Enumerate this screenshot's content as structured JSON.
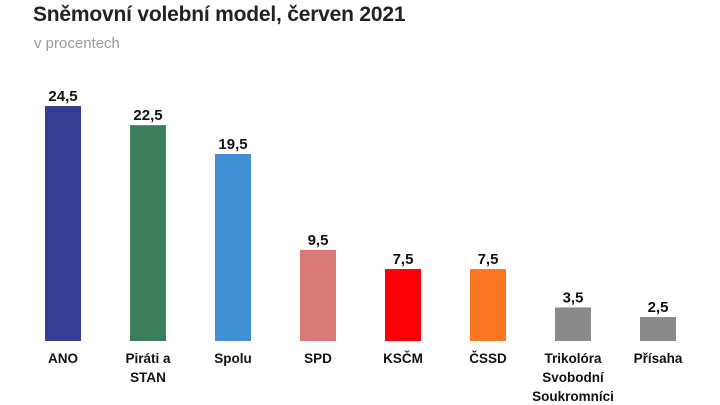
{
  "chart_data": {
    "type": "bar",
    "title": "Sněmovní volební model, červen 2021",
    "subtitle": "v procentech",
    "xlabel": "",
    "ylabel": "",
    "ylim": [
      0,
      24.5
    ],
    "grid": false,
    "categories": [
      [
        "ANO"
      ],
      [
        "Piráti a",
        "STAN"
      ],
      [
        "Spolu"
      ],
      [
        "SPD"
      ],
      [
        "KSČM"
      ],
      [
        "ČSSD"
      ],
      [
        "Trikolóra",
        "Svobodní",
        "Soukromníci"
      ],
      [
        "Přísaha"
      ]
    ],
    "values": [
      24.5,
      22.5,
      19.5,
      9.5,
      7.5,
      7.5,
      3.5,
      2.5
    ],
    "value_labels": [
      "24,5",
      "22,5",
      "19,5",
      "9,5",
      "7,5",
      "7,5",
      "3,5",
      "2,5"
    ],
    "colors": [
      "#343f94",
      "#3c7d5b",
      "#4190d6",
      "#d97a78",
      "#fb0006",
      "#fb7623",
      "#8a8a8a",
      "#8a8a8a"
    ]
  }
}
